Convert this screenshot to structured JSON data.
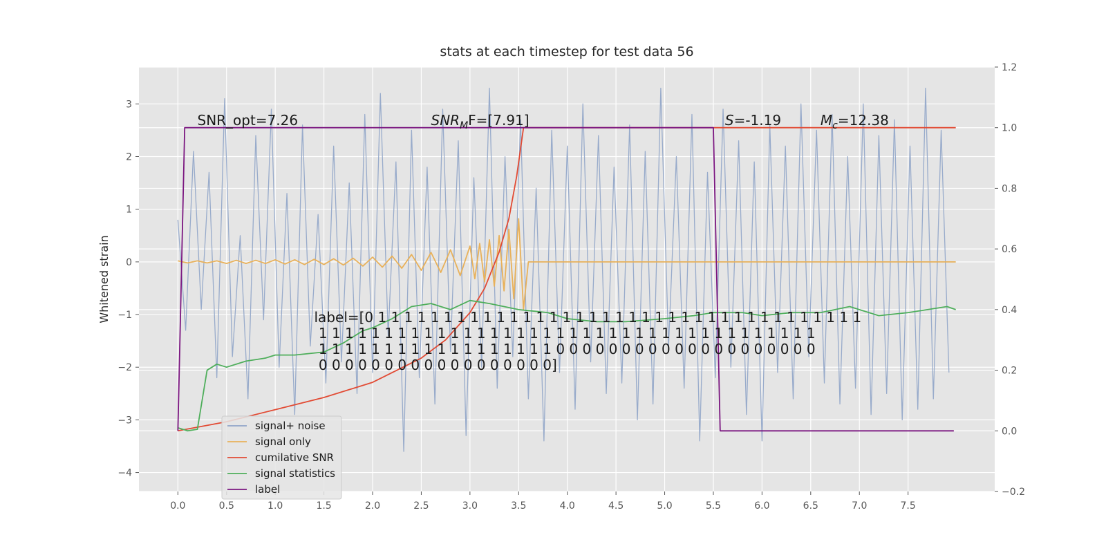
{
  "chart_data": {
    "type": "line",
    "title": "stats at each timestep for test data 56",
    "ylabel": "Whitened strain",
    "xlim": [
      -0.4,
      8.39
    ],
    "ylim": [
      -4.36,
      3.7
    ],
    "y2lim": [
      -0.2,
      1.2
    ],
    "xticks": [
      {
        "value": 0,
        "label": "0.0"
      },
      0.5,
      {
        "value": 1,
        "label": "1.0"
      },
      1.5,
      {
        "value": 2,
        "label": "2.0"
      },
      2.5,
      {
        "value": 3,
        "label": "3.0"
      },
      3.5,
      {
        "value": 4,
        "label": "4.0"
      },
      4.5,
      {
        "value": 5,
        "label": "5.0"
      },
      5.5,
      {
        "value": 6,
        "label": "6.0"
      },
      6.5,
      {
        "value": 7,
        "label": "7.0"
      },
      7.5
    ],
    "yticks": [
      {
        "value": -4,
        "label": "−4"
      },
      {
        "value": -3,
        "label": "−3"
      },
      {
        "value": -2,
        "label": "−2"
      },
      {
        "value": -1,
        "label": "−1"
      },
      0,
      1,
      2,
      3
    ],
    "y2ticks": [
      {
        "value": -0.2,
        "label": "−0.2"
      },
      {
        "value": 0,
        "label": "0.0"
      },
      0.2,
      0.4,
      0.6,
      0.8,
      {
        "value": 1,
        "label": "1.0"
      },
      1.2
    ],
    "grid": true,
    "series": [
      {
        "name": "signal+ noise",
        "color": "#8fa4c8",
        "x": [
          0,
          0.08,
          0.16,
          0.24,
          0.32,
          0.4,
          0.48,
          0.56,
          0.64,
          0.72,
          0.8,
          0.88,
          0.96,
          1.04,
          1.12,
          1.2,
          1.28,
          1.36,
          1.44,
          1.52,
          1.6,
          1.68,
          1.76,
          1.84,
          1.92,
          2.0,
          2.08,
          2.16,
          2.24,
          2.32,
          2.4,
          2.48,
          2.56,
          2.64,
          2.72,
          2.8,
          2.88,
          2.96,
          3.04,
          3.12,
          3.2,
          3.28,
          3.36,
          3.44,
          3.52,
          3.6,
          3.68,
          3.76,
          3.84,
          3.92,
          4.0,
          4.08,
          4.16,
          4.24,
          4.32,
          4.4,
          4.48,
          4.56,
          4.64,
          4.72,
          4.8,
          4.88,
          4.96,
          5.04,
          5.12,
          5.2,
          5.28,
          5.36,
          5.44,
          5.52,
          5.6,
          5.68,
          5.76,
          5.84,
          5.92,
          6.0,
          6.08,
          6.16,
          6.24,
          6.32,
          6.4,
          6.48,
          6.56,
          6.64,
          6.72,
          6.8,
          6.88,
          6.96,
          7.04,
          7.12,
          7.2,
          7.28,
          7.36,
          7.44,
          7.52,
          7.6,
          7.68,
          7.76,
          7.84,
          7.92
        ],
        "values": [
          0.8,
          -1.3,
          2.1,
          -0.9,
          1.7,
          -2.2,
          3.1,
          -1.8,
          0.5,
          -2.6,
          2.4,
          -1.1,
          2.9,
          -2.0,
          1.3,
          -2.9,
          2.6,
          -1.6,
          0.9,
          -2.3,
          2.2,
          -1.9,
          1.5,
          -2.5,
          2.8,
          -2.1,
          3.2,
          -1.4,
          1.9,
          -3.6,
          2.5,
          -2.2,
          1.8,
          -2.7,
          2.9,
          -1.7,
          2.3,
          -3.3,
          1.6,
          -2.0,
          3.3,
          -2.4,
          2.0,
          -1.8,
          2.7,
          -2.6,
          1.4,
          -3.4,
          2.5,
          -2.1,
          2.2,
          -2.8,
          3.0,
          -1.9,
          2.4,
          -2.5,
          1.8,
          -2.3,
          2.6,
          -3.0,
          2.1,
          -2.7,
          3.3,
          -1.6,
          2.0,
          -2.4,
          2.8,
          -3.4,
          1.7,
          -2.2,
          2.9,
          -2.0,
          2.3,
          -2.9,
          1.9,
          -3.4,
          2.6,
          -2.1,
          2.2,
          -2.6,
          3.0,
          -1.8,
          2.5,
          -2.3,
          2.8,
          -2.7,
          2.0,
          -2.4,
          3.0,
          -2.9,
          2.4,
          -2.5,
          2.7,
          -3.0,
          2.2,
          -2.8,
          3.3,
          -2.6,
          2.5,
          -2.1
        ]
      },
      {
        "name": "signal only",
        "color": "#e8b15a",
        "x": [
          0,
          0.1,
          0.2,
          0.3,
          0.4,
          0.5,
          0.6,
          0.7,
          0.8,
          0.9,
          1.0,
          1.1,
          1.2,
          1.3,
          1.4,
          1.5,
          1.6,
          1.7,
          1.8,
          1.9,
          2.0,
          2.1,
          2.2,
          2.3,
          2.4,
          2.5,
          2.6,
          2.7,
          2.8,
          2.9,
          3.0,
          3.05,
          3.1,
          3.15,
          3.2,
          3.25,
          3.3,
          3.35,
          3.4,
          3.45,
          3.5,
          3.55,
          3.6,
          7.99
        ],
        "values": [
          0.02,
          -0.02,
          0.02,
          -0.02,
          0.02,
          -0.03,
          0.03,
          -0.03,
          0.03,
          -0.03,
          0.04,
          -0.04,
          0.04,
          -0.05,
          0.05,
          -0.05,
          0.06,
          -0.06,
          0.07,
          -0.08,
          0.09,
          -0.1,
          0.11,
          -0.12,
          0.14,
          -0.16,
          0.18,
          -0.2,
          0.23,
          -0.26,
          0.3,
          -0.32,
          0.35,
          -0.38,
          0.42,
          -0.46,
          0.5,
          -0.55,
          0.62,
          -0.7,
          0.82,
          -0.9,
          0,
          0
        ]
      },
      {
        "name": "cumilative SNR",
        "color": "#e24a33",
        "axis": "y2",
        "x": [
          0,
          0.5,
          1,
          1.5,
          2,
          2.5,
          2.75,
          3,
          3.15,
          3.3,
          3.4,
          3.48,
          3.55,
          7.99
        ],
        "values": [
          0,
          0.03,
          0.07,
          0.11,
          0.16,
          0.24,
          0.3,
          0.39,
          0.47,
          0.59,
          0.7,
          0.84,
          1.0,
          1.0
        ]
      },
      {
        "name": "signal statistics",
        "color": "#4eae5b",
        "axis": "y2",
        "x": [
          0,
          0.1,
          0.2,
          0.3,
          0.4,
          0.5,
          0.7,
          0.9,
          1.0,
          1.2,
          1.5,
          1.7,
          1.9,
          2.0,
          2.2,
          2.4,
          2.6,
          2.8,
          3.0,
          3.2,
          3.5,
          3.8,
          4.0,
          4.3,
          4.6,
          5.0,
          5.3,
          5.5,
          5.8,
          6.0,
          6.3,
          6.6,
          6.9,
          7.2,
          7.5,
          7.7,
          7.9,
          7.99
        ],
        "values": [
          0.01,
          0,
          0.005,
          0.2,
          0.22,
          0.21,
          0.23,
          0.24,
          0.25,
          0.25,
          0.26,
          0.29,
          0.33,
          0.34,
          0.37,
          0.41,
          0.42,
          0.4,
          0.43,
          0.42,
          0.4,
          0.39,
          0.37,
          0.36,
          0.36,
          0.37,
          0.38,
          0.39,
          0.39,
          0.38,
          0.39,
          0.39,
          0.41,
          0.38,
          0.39,
          0.4,
          0.41,
          0.4
        ]
      },
      {
        "name": "label",
        "color": "#7b1680",
        "axis": "y2",
        "x": [
          0,
          0.07,
          5.5,
          5.57,
          7.97
        ],
        "values": [
          0,
          1,
          1,
          0,
          0
        ]
      }
    ],
    "annotations": [
      {
        "text": "SNR_opt=7.26"
      },
      {
        "main": "SNR",
        "sub": "M",
        "rest": "F=[7.91]"
      },
      {
        "main": "S",
        "rest": "=-1.19"
      },
      {
        "main": "M",
        "sub": "c",
        "rest": "=12.38"
      }
    ],
    "label_text": [
      "label=[0 1 1 1 1 1 1 1 1 1 1 1 1 1 1 1 1 1 1 1 1 1 1 1 1 1 1 1 1 1 1 1 1 1 1 1 1 1",
      " 1 1 1 1 1 1 1 1 1 1 1 1 1 1 1 1 1 1 1 1 1 1 1 1 1 1 1 1 1 1 1 1 1 1 1 1 1 1",
      " 1 1 1 1 1 1 1 1 1 1 1 1 1 1 1 1 1 1 0 0 0 0 0 0 0 0 0 0 0 0 0 0 0 0 0 0 0 0",
      " 0 0 0 0 0 0 0 0 0 0 0 0 0 0 0 0 0 0]"
    ]
  }
}
